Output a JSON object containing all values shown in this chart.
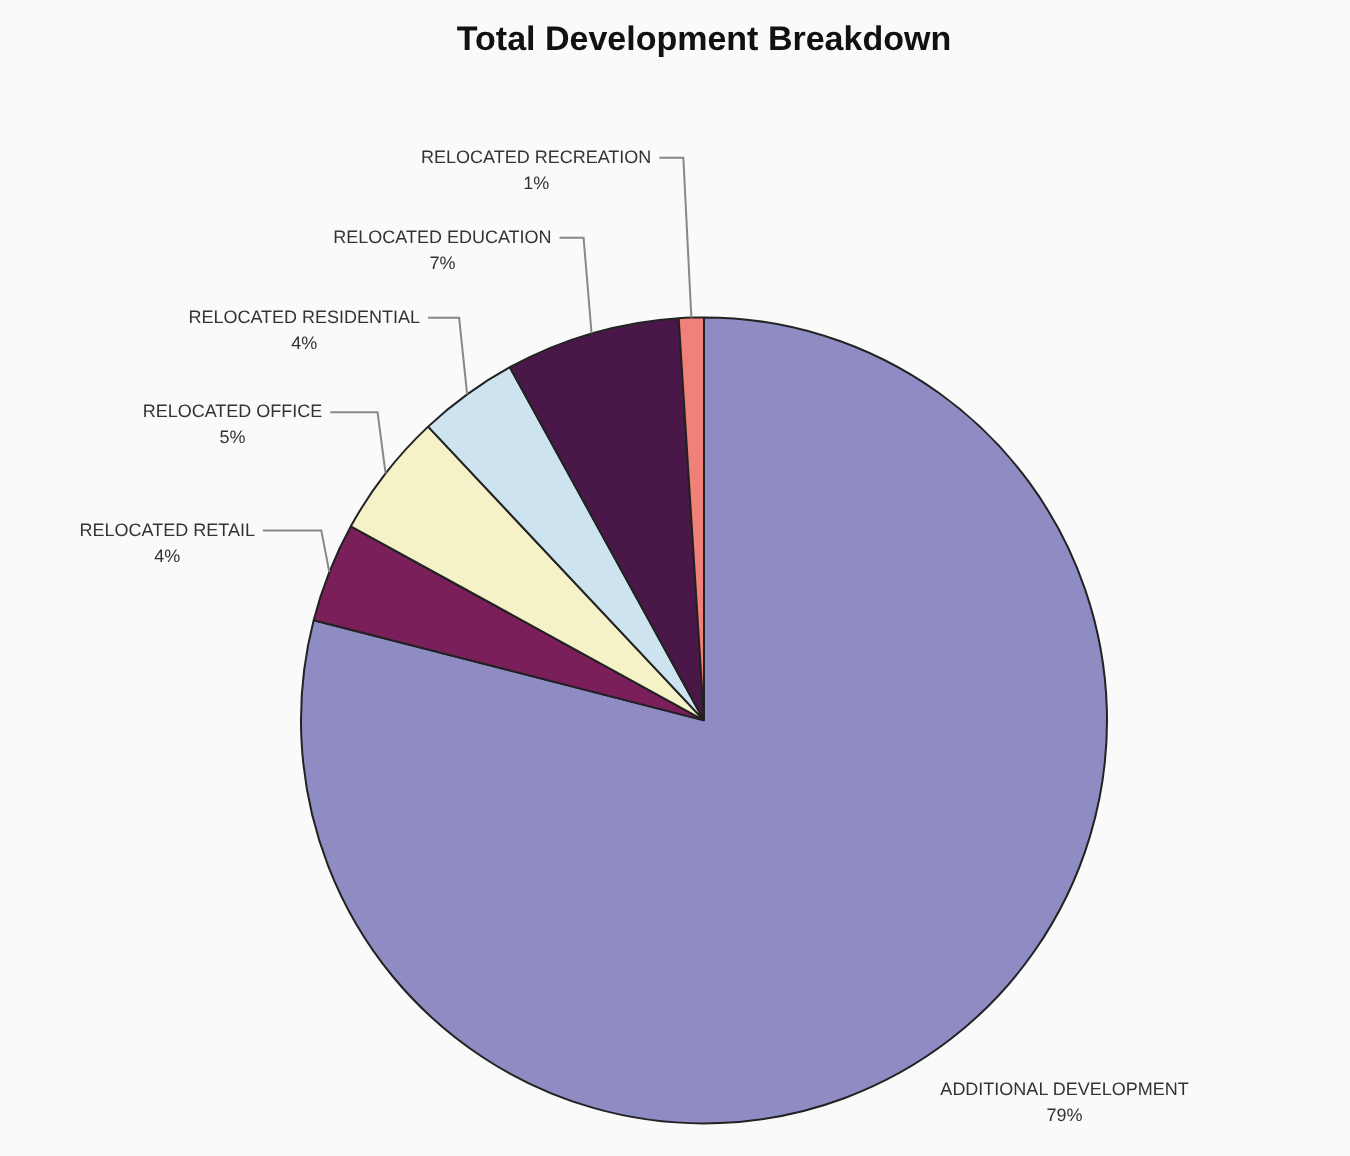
{
  "chart_data": {
    "type": "pie",
    "title": "Total Development Breakdown",
    "categories": [
      "ADDITIONAL DEVELOPMENT",
      "RELOCATED RETAIL",
      "RELOCATED OFFICE",
      "RELOCATED RESIDENTIAL",
      "RELOCATED EDUCATION",
      "RELOCATED RECREATION"
    ],
    "values": [
      79,
      4,
      5,
      4,
      7,
      1
    ],
    "value_labels": [
      "79%",
      "4%",
      "5%",
      "4%",
      "7%",
      "1%"
    ],
    "colors": [
      "#8f8cc4",
      "#7a1f5a",
      "#f5f2c8",
      "#cde3f0",
      "#4a1848",
      "#f08078"
    ],
    "legend": false
  }
}
